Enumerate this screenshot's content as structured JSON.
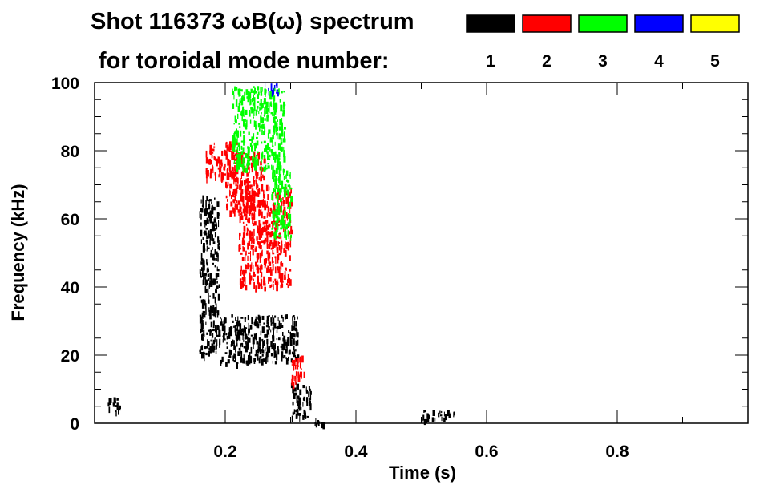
{
  "chart_data": {
    "type": "heatmap",
    "title_line1": "Shot 116373 ωB(ω) spectrum",
    "title_line2": "for toroidal mode number:",
    "xlabel": "Time (s)",
    "ylabel": "Frequency (kHz)",
    "xlim": [
      0.0,
      1.0
    ],
    "ylim": [
      0,
      100
    ],
    "x_ticks": [
      0.2,
      0.4,
      0.6,
      0.8
    ],
    "x_tick_labels": [
      "0.2",
      "0.4",
      "0.6",
      "0.8"
    ],
    "y_ticks": [
      0,
      20,
      40,
      60,
      80,
      100
    ],
    "y_tick_labels": [
      "0",
      "20",
      "40",
      "60",
      "80",
      "100"
    ],
    "legend": [
      {
        "label": "1",
        "color": "#000000"
      },
      {
        "label": "2",
        "color": "#ff0000"
      },
      {
        "label": "3",
        "color": "#00ff00"
      },
      {
        "label": "4",
        "color": "#0000ff"
      },
      {
        "label": "5",
        "color": "#ffff00"
      }
    ],
    "regions": [
      {
        "mode": "1",
        "time": [
          0.16,
          0.19
        ],
        "freq": [
          20,
          67
        ]
      },
      {
        "mode": "1",
        "time": [
          0.19,
          0.31
        ],
        "freq": [
          18,
          32
        ]
      },
      {
        "mode": "1",
        "time": [
          0.3,
          0.33
        ],
        "freq": [
          2,
          12
        ]
      },
      {
        "mode": "1",
        "time": [
          0.33,
          0.35
        ],
        "freq": [
          0,
          2
        ]
      },
      {
        "mode": "1",
        "time": [
          0.02,
          0.04
        ],
        "freq": [
          3,
          8
        ]
      },
      {
        "mode": "1",
        "time": [
          0.5,
          0.55
        ],
        "freq": [
          1,
          4
        ]
      },
      {
        "mode": "2",
        "time": [
          0.17,
          0.22
        ],
        "freq": [
          72,
          83
        ]
      },
      {
        "mode": "2",
        "time": [
          0.2,
          0.26
        ],
        "freq": [
          62,
          80
        ]
      },
      {
        "mode": "2",
        "time": [
          0.22,
          0.3
        ],
        "freq": [
          40,
          70
        ]
      },
      {
        "mode": "2",
        "time": [
          0.3,
          0.32
        ],
        "freq": [
          12,
          20
        ]
      },
      {
        "mode": "3",
        "time": [
          0.21,
          0.29
        ],
        "freq": [
          75,
          99
        ]
      },
      {
        "mode": "3",
        "time": [
          0.27,
          0.3
        ],
        "freq": [
          55,
          75
        ]
      },
      {
        "mode": "4",
        "time": [
          0.26,
          0.28
        ],
        "freq": [
          97,
          100
        ]
      }
    ]
  }
}
